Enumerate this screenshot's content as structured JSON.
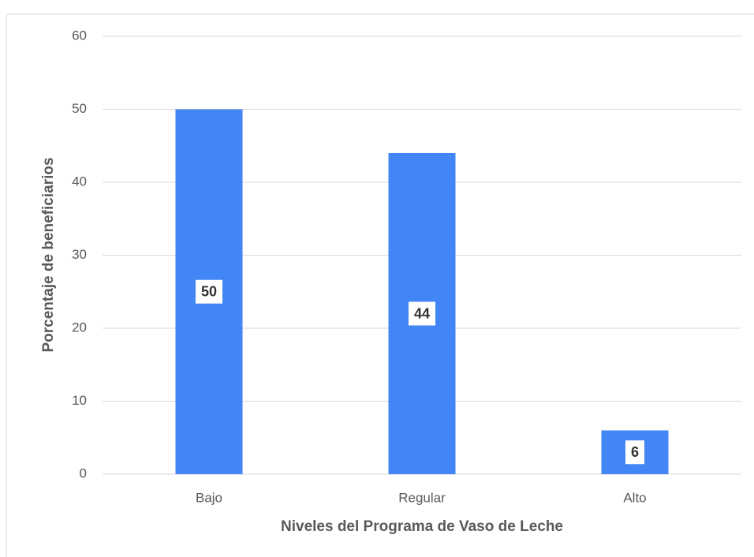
{
  "chart_data": {
    "type": "bar",
    "x_label": "Niveles del Programa de Vaso de Leche",
    "y_label": "Porcentaje de  beneficiarios",
    "categories": [
      "Bajo",
      "Regular",
      "Alto"
    ],
    "values": [
      50,
      44,
      6
    ],
    "color": "#4285f4",
    "ylim": [
      0,
      60
    ],
    "yticks": [
      0,
      10,
      20,
      30,
      40,
      50,
      60
    ],
    "grid": true
  }
}
